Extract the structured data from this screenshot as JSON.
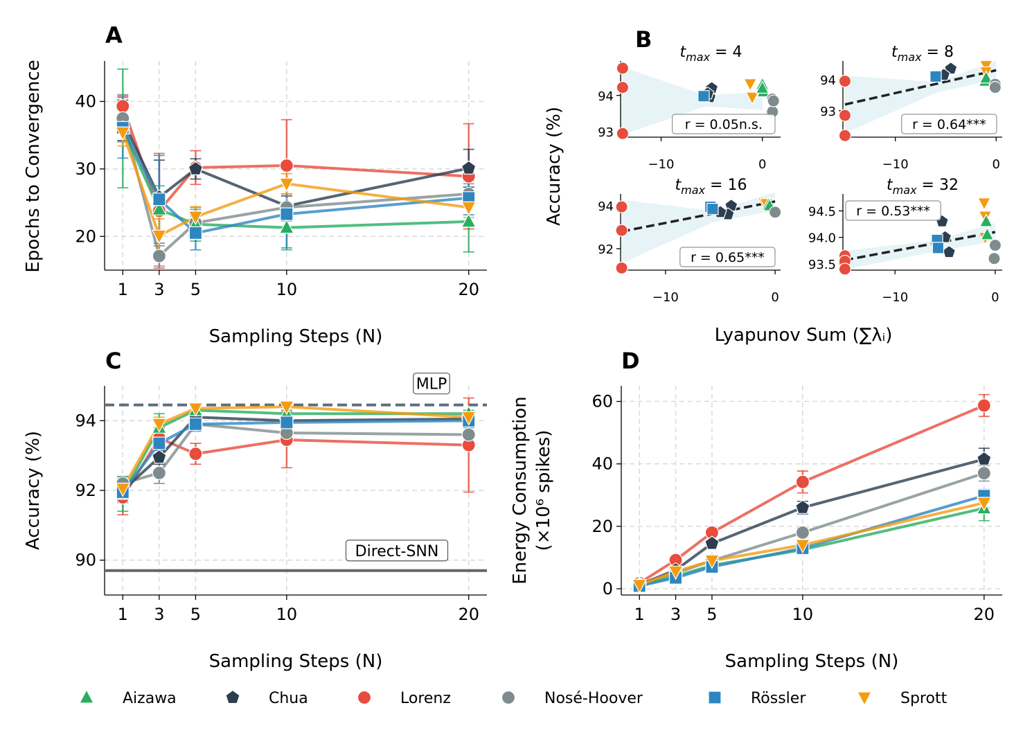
{
  "figure": {
    "panels": {
      "a": "A",
      "b": "B",
      "c": "C",
      "d": "D"
    }
  },
  "colors": {
    "Aizawa": "#27ae60",
    "Chua": "#2c3e50",
    "Lorenz": "#e74c3c",
    "Nosé-Hoover": "#7f8c8d",
    "Rössler": "#2e86c1",
    "Sprott": "#f39c12"
  },
  "markers": {
    "Aizawa": "triangle-up",
    "Chua": "pentagon",
    "Lorenz": "circle",
    "Nosé-Hoover": "circle",
    "Rössler": "square",
    "Sprott": "triangle-down"
  },
  "legend": {
    "entries": [
      "Aizawa",
      "Chua",
      "Lorenz",
      "Nosé-Hoover",
      "Rössler",
      "Sprott"
    ]
  },
  "chart_data": [
    {
      "id": "A",
      "type": "line",
      "title": "A",
      "xlabel": "Sampling Steps (N)",
      "ylabel": "Epochs to Convergence",
      "x": [
        1,
        3,
        5,
        10,
        20
      ],
      "xticks": [
        1,
        3,
        5,
        10,
        20
      ],
      "xtick_labels": [
        "1",
        "3",
        "5",
        "10",
        "20"
      ],
      "yticks": [
        20,
        30,
        40
      ],
      "ytick_labels": [
        "20",
        "30",
        "40"
      ],
      "xlim": [
        0,
        21
      ],
      "ylim": [
        15,
        46
      ],
      "series": [
        {
          "name": "Lorenz",
          "values": [
            39.3,
            23.8,
            30.2,
            30.5,
            28.9
          ],
          "err": [
            1.5,
            8.5,
            2.5,
            6.8,
            7.8
          ]
        },
        {
          "name": "Chua",
          "values": [
            37.2,
            25.8,
            30.0,
            24.5,
            30.1
          ],
          "err": [
            3.0,
            5.5,
            1.5,
            1.5,
            2.8
          ]
        },
        {
          "name": "Nosé-Hoover",
          "values": [
            37.5,
            17.1,
            22.0,
            24.3,
            26.3
          ],
          "err": [
            3.5,
            1.5,
            2.0,
            2.0,
            1.5
          ]
        },
        {
          "name": "Aizawa",
          "values": [
            36.0,
            24.0,
            21.8,
            21.3,
            22.2
          ],
          "err": [
            8.8,
            3.5,
            2.5,
            3.3,
            4.5
          ]
        },
        {
          "name": "Rössler",
          "values": [
            36.1,
            25.5,
            20.5,
            23.3,
            25.7
          ],
          "err": [
            4.5,
            6.5,
            2.5,
            5.0,
            2.5
          ]
        },
        {
          "name": "Sprott",
          "values": [
            35.4,
            20.1,
            22.9,
            27.8,
            24.3
          ],
          "err": [
            2.0,
            2.5,
            1.5,
            1.5,
            1.5
          ]
        }
      ]
    },
    {
      "id": "B",
      "type": "scatter",
      "title": "B",
      "xlabel": "Lyapunov Sum (∑λᵢ)",
      "ylabel": "Accuracy (%)",
      "subplots": [
        {
          "title_var": "t",
          "title_sub": "max",
          "title_rest": " = 4",
          "annotation": "r = 0.05n.s.",
          "xlim": [
            -14,
            1.8
          ],
          "ylim": [
            92.85,
            94.95
          ],
          "xticks": [
            -10,
            0
          ],
          "xtick_labels": [
            "−10",
            "0"
          ],
          "yticks": [
            93,
            94
          ],
          "ytick_labels": [
            "93",
            "94"
          ],
          "fit": {
            "x": [
              -14,
              0
            ],
            "y": null
          },
          "points": [
            {
              "name": "Lorenz",
              "x": [
                -13.8,
                -13.8,
                -13.8
              ],
              "y": [
                94.75,
                94.22,
                92.95
              ]
            },
            {
              "name": "Chua",
              "x": [
                -5.0,
                -5.2,
                -5.4
              ],
              "y": [
                94.2,
                93.95,
                94.05
              ]
            },
            {
              "name": "Rössler",
              "x": [
                -5.8
              ],
              "y": [
                93.98
              ]
            },
            {
              "name": "Sprott",
              "x": [
                -1.2,
                -1.0
              ],
              "y": [
                94.32,
                93.95
              ]
            },
            {
              "name": "Aizawa",
              "x": [
                0.0,
                0.1,
                0.0
              ],
              "y": [
                94.3,
                94.1,
                94.2
              ]
            },
            {
              "name": "Nosé-Hoover",
              "x": [
                1.0,
                1.0,
                1.1
              ],
              "y": [
                93.9,
                93.55,
                93.85
              ]
            }
          ]
        },
        {
          "title_var": "t",
          "title_sub": "max",
          "title_rest": " = 8",
          "annotation": "r = 0.64***",
          "xlim": [
            -15.2,
            0.6
          ],
          "ylim": [
            92.15,
            94.6
          ],
          "xticks": [
            -10,
            0
          ],
          "xtick_labels": [
            "−10",
            "0"
          ],
          "yticks": [
            93,
            94
          ],
          "ytick_labels": [
            "93",
            "94"
          ],
          "fit": {
            "x": [
              -15,
              0
            ],
            "y": [
              93.2,
              94.3
            ]
          },
          "points": [
            {
              "name": "Lorenz",
              "x": [
                -15.0,
                -15.0,
                -15.0
              ],
              "y": [
                93.95,
                92.85,
                92.2
              ]
            },
            {
              "name": "Chua",
              "x": [
                -4.5,
                -5.2
              ],
              "y": [
                94.35,
                94.15
              ]
            },
            {
              "name": "Rössler",
              "x": [
                -6.0
              ],
              "y": [
                94.1
              ]
            },
            {
              "name": "Sprott",
              "x": [
                -1.0,
                -1.0
              ],
              "y": [
                94.45,
                94.25
              ]
            },
            {
              "name": "Aizawa",
              "x": [
                -1.1,
                -1.0
              ],
              "y": [
                93.95,
                94.05
              ]
            },
            {
              "name": "Nosé-Hoover",
              "x": [
                -0.1,
                -0.1
              ],
              "y": [
                93.85,
                93.75
              ]
            }
          ]
        },
        {
          "title_var": "t",
          "title_sub": "max",
          "title_rest": " = 16",
          "annotation": "r = 0.65***",
          "xlim": [
            -14.1,
            0.5
          ],
          "ylim": [
            91.0,
            94.55
          ],
          "xticks": [
            -10,
            0
          ],
          "xtick_labels": [
            "−10",
            "0"
          ],
          "yticks": [
            92,
            94
          ],
          "ytick_labels": [
            "92",
            "94"
          ],
          "fit": {
            "x": [
              -14,
              0
            ],
            "y": [
              92.8,
              94.2
            ]
          },
          "points": [
            {
              "name": "Lorenz",
              "x": [
                -14.0,
                -14.0,
                -14.0
              ],
              "y": [
                93.95,
                92.85,
                91.1
              ]
            },
            {
              "name": "Chua",
              "x": [
                -4.0,
                -4.3,
                -5.0
              ],
              "y": [
                94.0,
                93.6,
                93.7
              ]
            },
            {
              "name": "Rössler",
              "x": [
                -5.9,
                -5.7
              ],
              "y": [
                93.95,
                93.85
              ]
            },
            {
              "name": "Sprott",
              "x": [
                -1.0,
                -0.8
              ],
              "y": [
                94.15,
                94.1
              ]
            },
            {
              "name": "Aizawa",
              "x": [
                -0.6,
                -0.5
              ],
              "y": [
                94.05,
                94.0
              ]
            },
            {
              "name": "Nosé-Hoover",
              "x": [
                0.0
              ],
              "y": [
                93.7
              ]
            }
          ]
        },
        {
          "title_var": "t",
          "title_sub": "max",
          "title_rest": " = 32",
          "annotation": "r = 0.53***",
          "xlim": [
            -15.2,
            0.7
          ],
          "ylim": [
            93.38,
            94.82
          ],
          "xticks": [
            -10,
            0
          ],
          "xtick_labels": [
            "−10",
            "0"
          ],
          "yticks": [
            93.5,
            94.0,
            94.5
          ],
          "ytick_labels": [
            "93.5",
            "94.0",
            "94.5"
          ],
          "fit": {
            "x": [
              -15,
              0
            ],
            "y": [
              93.57,
              94.1
            ]
          },
          "points": [
            {
              "name": "Lorenz",
              "x": [
                -15.0,
                -15.0,
                -15.0
              ],
              "y": [
                93.65,
                93.55,
                93.4
              ]
            },
            {
              "name": "Chua",
              "x": [
                -5.3,
                -4.6,
                -5.0
              ],
              "y": [
                94.3,
                93.72,
                94.0
              ]
            },
            {
              "name": "Rössler",
              "x": [
                -5.8,
                -5.7
              ],
              "y": [
                93.95,
                93.8
              ]
            },
            {
              "name": "Sprott",
              "x": [
                -1.1,
                -1.0,
                -1.0
              ],
              "y": [
                94.65,
                94.4,
                94.0
              ]
            },
            {
              "name": "Aizawa",
              "x": [
                -0.9,
                -0.8
              ],
              "y": [
                94.3,
                94.05
              ]
            },
            {
              "name": "Nosé-Hoover",
              "x": [
                0.0,
                -0.1
              ],
              "y": [
                93.85,
                93.6
              ]
            }
          ]
        }
      ]
    },
    {
      "id": "C",
      "type": "line",
      "title": "C",
      "xlabel": "Sampling Steps (N)",
      "ylabel": "Accuracy (%)",
      "x": [
        1,
        3,
        5,
        10,
        20
      ],
      "xticks": [
        1,
        3,
        5,
        10,
        20
      ],
      "xtick_labels": [
        "1",
        "3",
        "5",
        "10",
        "20"
      ],
      "yticks": [
        90,
        92,
        94
      ],
      "ytick_labels": [
        "90",
        "92",
        "94"
      ],
      "xlim": [
        0,
        21
      ],
      "ylim": [
        89.0,
        95.0
      ],
      "reference_lines": [
        {
          "label": "MLP",
          "y": 94.45,
          "style": "dashed",
          "color": "#5d6d7e"
        },
        {
          "label": "Direct-SNN",
          "y": 89.7,
          "style": "solid",
          "color": "#666666"
        }
      ],
      "series": [
        {
          "name": "Lorenz",
          "values": [
            91.8,
            93.5,
            93.05,
            93.45,
            93.3
          ],
          "err": [
            0.5,
            0.3,
            0.3,
            0.8,
            1.35
          ]
        },
        {
          "name": "Nosé-Hoover",
          "values": [
            92.2,
            92.5,
            93.9,
            93.65,
            93.6
          ],
          "err": [
            0.2,
            0.3,
            0.1,
            0.1,
            0.1
          ]
        },
        {
          "name": "Chua",
          "values": [
            92.0,
            92.95,
            94.1,
            94.0,
            94.05
          ],
          "err": [
            0.2,
            0.2,
            0.1,
            0.1,
            0.1
          ]
        },
        {
          "name": "Aizawa",
          "values": [
            91.9,
            93.8,
            94.3,
            94.2,
            94.2
          ],
          "err": [
            0.5,
            0.4,
            0.15,
            0.1,
            0.1
          ]
        },
        {
          "name": "Rössler",
          "values": [
            91.95,
            93.35,
            93.9,
            93.95,
            94.0
          ],
          "err": [
            0.3,
            0.4,
            0.2,
            0.3,
            0.2
          ]
        },
        {
          "name": "Sprott",
          "values": [
            92.05,
            93.9,
            94.35,
            94.4,
            94.1
          ],
          "err": [
            0.3,
            0.2,
            0.1,
            0.15,
            0.1
          ]
        }
      ]
    },
    {
      "id": "D",
      "type": "line",
      "title": "D",
      "xlabel": "Sampling Steps (N)",
      "ylabel": "Energy Consumption",
      "ylabel2": "(×10⁶ spikes)",
      "x": [
        1,
        3,
        5,
        10,
        20
      ],
      "xticks": [
        1,
        3,
        5,
        10,
        20
      ],
      "xtick_labels": [
        "1",
        "3",
        "5",
        "10",
        "20"
      ],
      "yticks": [
        0,
        20,
        40,
        60
      ],
      "ytick_labels": [
        "0",
        "20",
        "40",
        "60"
      ],
      "xlim": [
        0,
        21
      ],
      "ylim": [
        -2,
        65
      ],
      "series": [
        {
          "name": "Lorenz",
          "values": [
            1.8,
            9.2,
            18.0,
            34.2,
            58.7
          ],
          "err": [
            0.3,
            1.0,
            1.0,
            3.5,
            3.5
          ]
        },
        {
          "name": "Chua",
          "values": [
            1.3,
            6.0,
            14.5,
            26.0,
            41.5
          ],
          "err": [
            0.3,
            0.5,
            1.0,
            2.0,
            3.5
          ]
        },
        {
          "name": "Nosé-Hoover",
          "values": [
            1.2,
            5.0,
            9.0,
            18.0,
            37.0
          ],
          "err": [
            0.3,
            0.5,
            0.5,
            1.5,
            2.5
          ]
        },
        {
          "name": "Aizawa",
          "values": [
            1.0,
            4.0,
            7.5,
            12.5,
            25.8
          ],
          "err": [
            0.2,
            0.5,
            0.5,
            1.5,
            4.0
          ]
        },
        {
          "name": "Rössler",
          "values": [
            0.9,
            3.5,
            7.0,
            13.0,
            29.8
          ],
          "err": [
            0.2,
            0.5,
            0.5,
            1.0,
            2.0
          ]
        },
        {
          "name": "Sprott",
          "values": [
            1.2,
            5.5,
            9.0,
            14.0,
            27.5
          ],
          "err": [
            0.2,
            0.5,
            0.5,
            1.0,
            1.5
          ]
        }
      ]
    }
  ]
}
